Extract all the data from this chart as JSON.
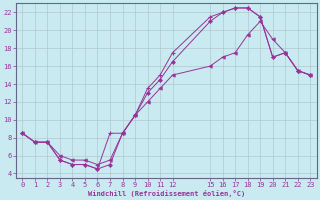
{
  "xlabel": "Windchill (Refroidissement éolien,°C)",
  "background_color": "#c8eaf0",
  "grid_color": "#b0c8d0",
  "line_color": "#993399",
  "xlim": [
    -0.5,
    23.5
  ],
  "ylim": [
    3.5,
    23
  ],
  "xticks": [
    0,
    1,
    2,
    3,
    4,
    5,
    6,
    7,
    8,
    9,
    10,
    11,
    12,
    15,
    16,
    17,
    18,
    19,
    20,
    21,
    22,
    23
  ],
  "yticks": [
    4,
    6,
    8,
    10,
    12,
    14,
    16,
    18,
    20,
    22
  ],
  "line1_x": [
    0,
    1,
    2,
    3,
    4,
    5,
    6,
    7,
    8,
    9,
    10,
    11,
    12,
    15,
    16,
    17,
    18,
    19,
    20,
    21,
    22,
    23
  ],
  "line1_y": [
    8.5,
    7.5,
    7.5,
    5.5,
    5.0,
    5.0,
    4.5,
    8.5,
    8.5,
    10.5,
    13.5,
    15.0,
    17.5,
    21.5,
    22.0,
    22.5,
    22.5,
    21.5,
    17.0,
    17.5,
    15.5,
    15.0
  ],
  "line2_x": [
    0,
    1,
    2,
    3,
    4,
    5,
    6,
    7,
    8,
    9,
    10,
    11,
    12,
    15,
    16,
    17,
    18,
    19,
    20,
    21,
    22,
    23
  ],
  "line2_y": [
    8.5,
    7.5,
    7.5,
    5.5,
    5.0,
    5.0,
    4.5,
    5.0,
    8.5,
    10.5,
    13.0,
    14.5,
    16.5,
    21.0,
    22.0,
    22.5,
    22.5,
    21.5,
    17.0,
    17.5,
    15.5,
    15.0
  ],
  "line3_x": [
    0,
    1,
    2,
    3,
    4,
    5,
    6,
    7,
    8,
    9,
    10,
    11,
    12,
    15,
    16,
    17,
    18,
    19,
    20,
    21,
    22,
    23
  ],
  "line3_y": [
    8.5,
    7.5,
    7.5,
    6.0,
    5.5,
    5.5,
    5.0,
    5.5,
    8.5,
    10.5,
    12.0,
    13.5,
    15.0,
    16.0,
    17.0,
    17.5,
    19.5,
    21.0,
    19.0,
    17.5,
    15.5,
    15.0
  ]
}
